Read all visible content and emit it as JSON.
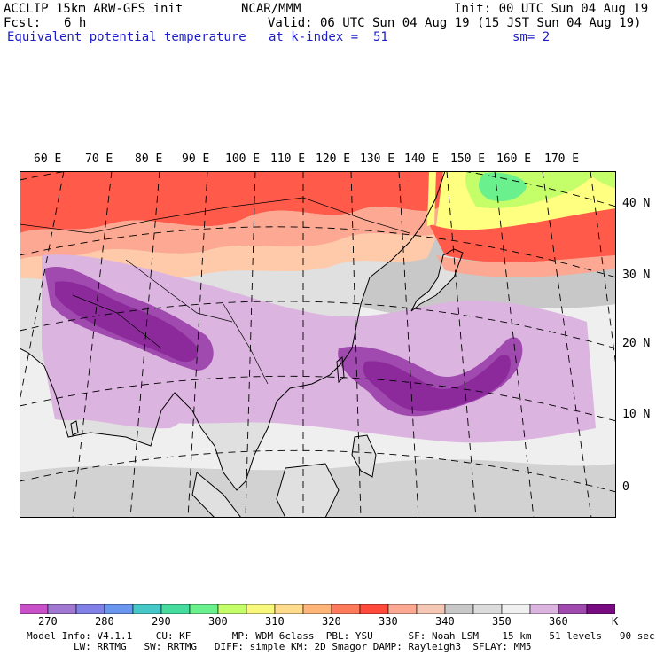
{
  "header": {
    "model": "ACCLIP 15km ARW-GFS init",
    "center": "NCAR/MMM",
    "init": "Init: 00 UTC Sun 04 Aug 19",
    "fcst_label": "Fcst:",
    "fcst_value": "6 h",
    "valid": "Valid: 06 UTC Sun 04 Aug 19 (15 JST Sun 04 Aug 19)",
    "field": "Equivalent potential temperature",
    "level": "at k-index =  51",
    "smooth": "sm= 2"
  },
  "map": {
    "lon_labels": [
      "60 E",
      "70 E",
      "80 E",
      "90 E",
      "100 E",
      "110 E",
      "120 E",
      "130 E",
      "140 E",
      "150 E",
      "160 E",
      "170 E"
    ],
    "lat_labels": [
      "40 N",
      "30 N",
      "20 N",
      "10 N",
      "0"
    ],
    "colors": {
      "ocean": "#efefef",
      "land": "#e2e2e2",
      "gray": "#c8c8c8",
      "red": "#ff5a4a",
      "salmon": "#fca892",
      "peach": "#ffcaaa",
      "lavender": "#dcb4e0",
      "mid_purple": "#a04ab0",
      "dark_purple": "#8c2a9c",
      "lime": "#c4ff6a",
      "green": "#6af08c",
      "yellow": "#ffff80"
    }
  },
  "colorbar": {
    "colors": [
      "#c850c8",
      "#a078d2",
      "#8080e6",
      "#6a96f0",
      "#46c8c8",
      "#46dca0",
      "#6af08c",
      "#c4ff6a",
      "#f8f87c",
      "#ffdc8c",
      "#ffb478",
      "#ff7a5a",
      "#ff4a3c",
      "#fca892",
      "#f4c8b4",
      "#c8c8c8",
      "#dcdcdc",
      "#f0f0f0",
      "#dcb4e0",
      "#a04ab0",
      "#780a82"
    ],
    "labels": [
      "270",
      "280",
      "290",
      "300",
      "310",
      "320",
      "330",
      "340",
      "350",
      "360"
    ],
    "unit": "K"
  },
  "footer": {
    "line1": "Model Info: V4.1.1    CU: KF       MP: WDM 6class  PBL: YSU      SF: Noah LSM    15 km   51 levels   90 sec",
    "line2": "        LW: RRTMG   SW: RRTMG   DIFF: simple KM: 2D Smagor DAMP: Rayleigh3  SFLAY: MM5"
  }
}
